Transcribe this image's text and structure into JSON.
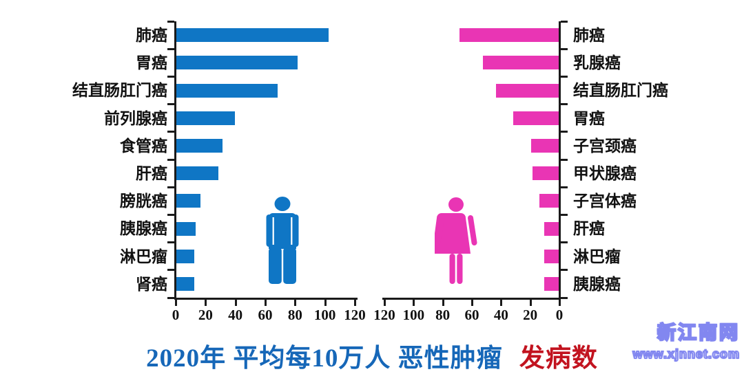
{
  "title": {
    "part1": "2020年 平均每10万人 恶性肿瘤",
    "part2": "发病数"
  },
  "watermark": {
    "site_name": "新江南网",
    "site_url": "www.xjnnet.com"
  },
  "colors": {
    "male_bar": "#0F76C5",
    "female_bar": "#E935B4",
    "title_blue": "#1667B8",
    "title_red": "#C2131F",
    "axis": "#1A1A1A",
    "label_text": "#111111",
    "watermark_outline": "#8287F0",
    "watermark_fill": "#FFFFFF"
  },
  "chart_data": [
    {
      "type": "bar",
      "orientation": "horizontal",
      "icon": "male-figure",
      "color": "#0F76C5",
      "categories": [
        "肺癌",
        "胃癌",
        "结直肠肛门癌",
        "前列腺癌",
        "食管癌",
        "肝癌",
        "膀胱癌",
        "胰腺癌",
        "淋巴瘤",
        "肾癌"
      ],
      "values": [
        102,
        81,
        68,
        39,
        31,
        28,
        16,
        13,
        12,
        12
      ],
      "xlim": [
        0,
        120
      ],
      "ticks": [
        0,
        20,
        40,
        60,
        80,
        100,
        120
      ],
      "bar_direction": "left-to-right",
      "grid": false,
      "value_axis": "bottom"
    },
    {
      "type": "bar",
      "orientation": "horizontal",
      "icon": "female-figure",
      "color": "#E935B4",
      "categories": [
        "肺癌",
        "乳腺癌",
        "结直肠肛门癌",
        "胃癌",
        "子宫颈癌",
        "甲状腺癌",
        "子宫体癌",
        "肝癌",
        "淋巴瘤",
        "胰腺癌"
      ],
      "values": [
        68,
        52,
        43,
        31,
        19,
        18,
        13,
        10,
        10,
        10
      ],
      "xlim": [
        0,
        120
      ],
      "ticks": [
        120,
        100,
        80,
        60,
        40,
        20,
        0
      ],
      "bar_direction": "right-to-left",
      "grid": false,
      "value_axis": "bottom"
    }
  ]
}
